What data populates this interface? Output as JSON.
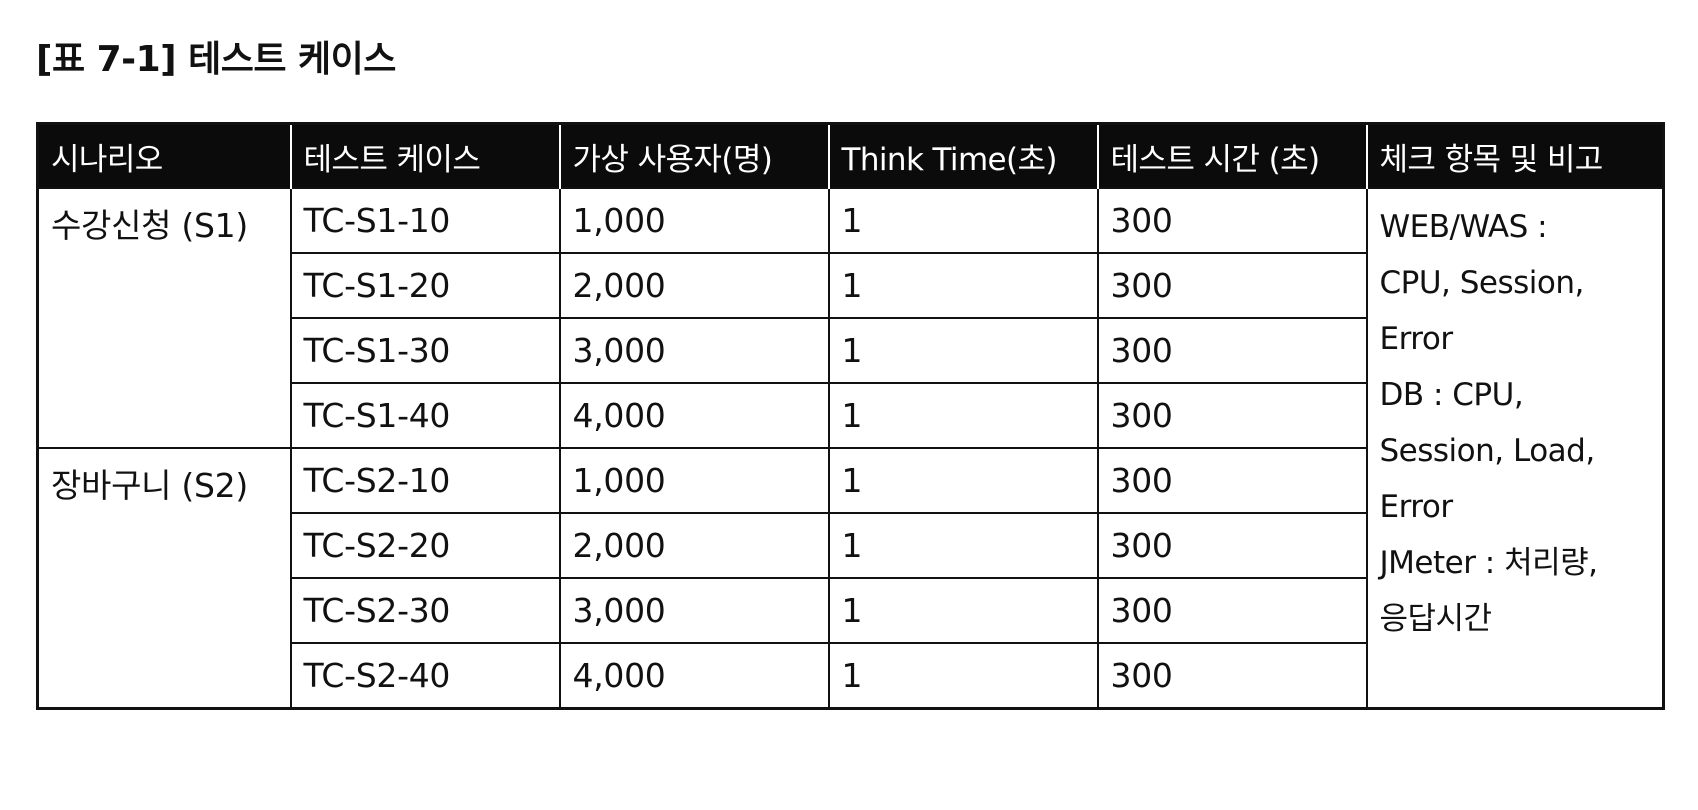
{
  "caption": "[표 7-1] 테스트 케이스",
  "table": {
    "headers": [
      "시나리오",
      "테스트 케이스",
      "가상 사용자(명)",
      "Think Time(초)",
      "테스트 시간 (초)",
      "체크 항목 및 비고"
    ],
    "scenarios": [
      {
        "name": "수강신청 (S1)",
        "rows": [
          {
            "case": "TC-S1-10",
            "users": "1,000",
            "think": "1",
            "duration": "300"
          },
          {
            "case": "TC-S1-20",
            "users": "2,000",
            "think": "1",
            "duration": "300"
          },
          {
            "case": "TC-S1-30",
            "users": "3,000",
            "think": "1",
            "duration": "300"
          },
          {
            "case": "TC-S1-40",
            "users": "4,000",
            "think": "1",
            "duration": "300"
          }
        ]
      },
      {
        "name": "장바구니 (S2)",
        "rows": [
          {
            "case": "TC-S2-10",
            "users": "1,000",
            "think": "1",
            "duration": "300"
          },
          {
            "case": "TC-S2-20",
            "users": "2,000",
            "think": "1",
            "duration": "300"
          },
          {
            "case": "TC-S2-30",
            "users": "3,000",
            "think": "1",
            "duration": "300"
          },
          {
            "case": "TC-S2-40",
            "users": "4,000",
            "think": "1",
            "duration": "300"
          }
        ]
      }
    ],
    "notes": [
      "WEB/WAS :",
      "CPU, Session,",
      "Error",
      "DB : CPU,",
      "Session,  Load,",
      "Error",
      "JMeter : 처리량,",
      "응답시간"
    ]
  }
}
